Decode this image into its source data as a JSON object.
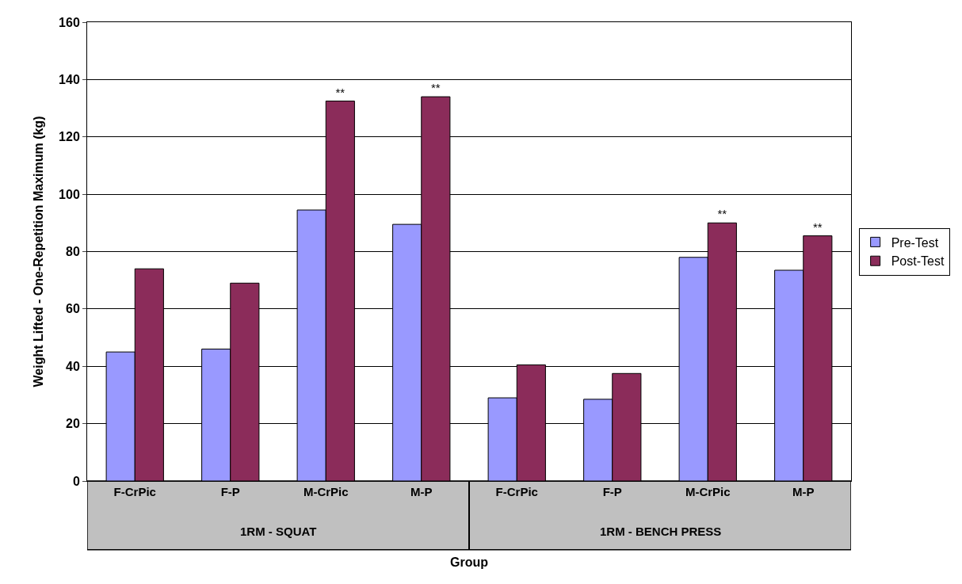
{
  "chart_data": {
    "type": "bar",
    "xlabel": "Group",
    "ylabel": "Weight Lifted - One-Repetition Maximum (kg)",
    "categories": [
      "F-CrPic",
      "F-P",
      "M-CrPic",
      "M-P",
      "F-CrPic",
      "F-P",
      "M-CrPic",
      "M-P"
    ],
    "series": [
      {
        "name": "Pre-Test",
        "color": "#9999ff",
        "values": [
          45,
          46,
          94.5,
          89.5,
          29,
          28.5,
          78,
          73.5
        ]
      },
      {
        "name": "Post-Test",
        "color": "#8b2c5a",
        "values": [
          74,
          69,
          132.5,
          134,
          40.5,
          37.5,
          90,
          85.5
        ],
        "value_labels": [
          null,
          null,
          "**",
          "**",
          null,
          null,
          "**",
          "**"
        ]
      }
    ],
    "ylim": [
      0,
      160
    ],
    "yticks": [
      0,
      20,
      40,
      60,
      80,
      100,
      120,
      140,
      160
    ],
    "grid": "y",
    "legend": "right",
    "annotations": [
      "1RM - SQUAT",
      "1RM - BENCH PRESS"
    ]
  }
}
